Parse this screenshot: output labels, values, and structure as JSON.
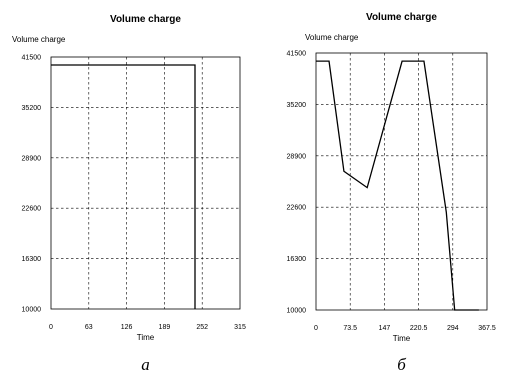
{
  "chart_data": [
    {
      "type": "line",
      "title": "Volume charge",
      "ylabel": "Volume charge",
      "xlabel": "Time",
      "panel_label": "а",
      "xlim": [
        0,
        315
      ],
      "ylim": [
        10000,
        41500
      ],
      "xticks": [
        "0",
        "63",
        "126",
        "189",
        "252",
        "315"
      ],
      "yticks": [
        "10000",
        "16300",
        "22600",
        "28900",
        "35200",
        "41500"
      ],
      "grid": true,
      "series": [
        {
          "x": [
            0,
            240,
            240
          ],
          "y": [
            40500,
            40500,
            10000
          ]
        }
      ]
    },
    {
      "type": "line",
      "title": "Volume charge",
      "ylabel": "Volume charge",
      "xlabel": "Time",
      "panel_label": "б",
      "xlim": [
        0,
        367.5
      ],
      "ylim": [
        10000,
        41500
      ],
      "xticks": [
        "0",
        "73.5",
        "147",
        "220.5",
        "294",
        "367.5"
      ],
      "yticks": [
        "10000",
        "16300",
        "22600",
        "28900",
        "35200",
        "41500"
      ],
      "grid": true,
      "series": [
        {
          "x": [
            0,
            28,
            60,
            110,
            185,
            232,
            280,
            298,
            350
          ],
          "y": [
            40500,
            40500,
            27000,
            25000,
            40500,
            40500,
            22000,
            10000,
            10000
          ]
        }
      ]
    }
  ]
}
